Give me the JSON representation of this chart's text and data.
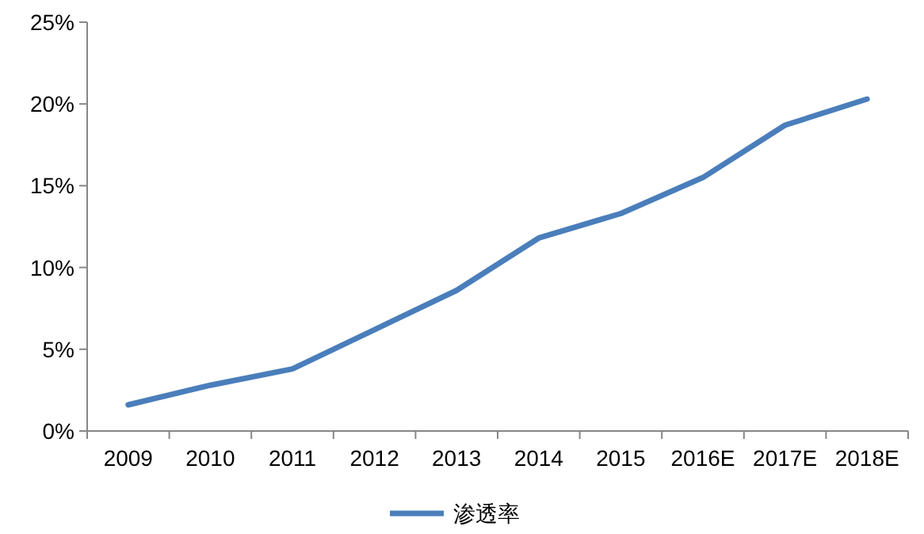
{
  "chart_data": {
    "type": "line",
    "categories": [
      "2009",
      "2010",
      "2011",
      "2012",
      "2013",
      "2014",
      "2015",
      "2016E",
      "2017E",
      "2018E"
    ],
    "series": [
      {
        "name": "渗透率",
        "color": "#4a7ebb",
        "values": [
          1.6,
          2.8,
          3.8,
          6.2,
          8.6,
          11.8,
          13.3,
          15.5,
          18.7,
          20.3
        ]
      }
    ],
    "ylim": [
      0,
      25
    ],
    "yticks": [
      {
        "value": 0,
        "label": "0%"
      },
      {
        "value": 5,
        "label": "5%"
      },
      {
        "value": 10,
        "label": "10%"
      },
      {
        "value": 15,
        "label": "15%"
      },
      {
        "value": 20,
        "label": "20%"
      },
      {
        "value": 25,
        "label": "25%"
      }
    ],
    "grid": false,
    "legend": "bottom",
    "marker": "none",
    "line_style": "solid"
  }
}
